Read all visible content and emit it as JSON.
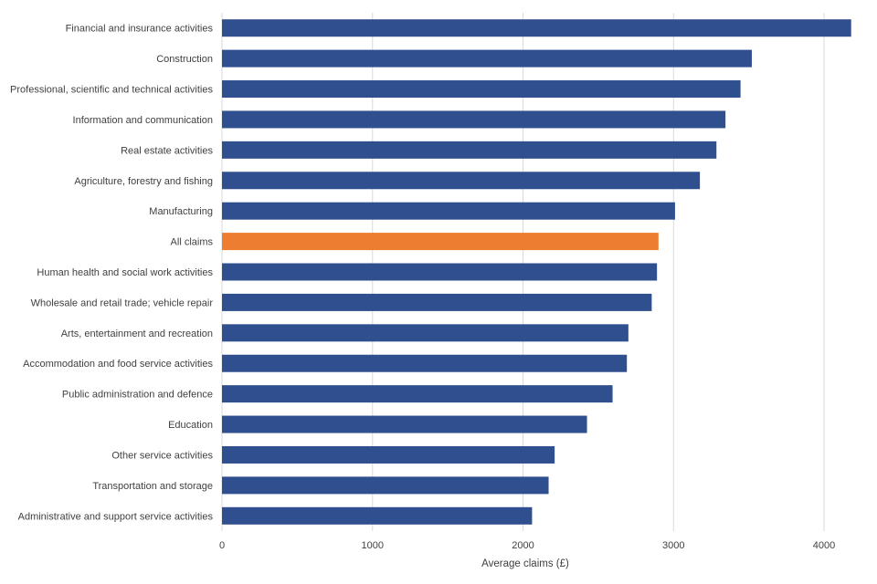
{
  "chart_data": {
    "type": "bar",
    "orientation": "horizontal",
    "title": "",
    "xlabel": "Average claims (£)",
    "ylabel": "",
    "xlim": [
      0,
      4200
    ],
    "xticks": [
      "0",
      "1000",
      "2000",
      "3000",
      "4000"
    ],
    "grid": true,
    "colors": {
      "default": "#2F4F8F",
      "highlight": "#ED7D31"
    },
    "categories": [
      "Financial and insurance activities",
      "Construction",
      "Professional, scientific and technical activities",
      "Information and communication",
      "Real estate activities",
      "Agriculture, forestry and fishing",
      "Manufacturing",
      "All claims",
      "Human health and social work activities",
      "Wholesale and retail trade; vehicle repair",
      "Arts, entertainment and recreation",
      "Accommodation and food service activities",
      "Public administration and defence",
      "Education",
      "Other service activities",
      "Transportation and storage",
      "Administrative and support service activities"
    ],
    "values": [
      4180,
      3520,
      3445,
      3345,
      3285,
      3175,
      3010,
      2900,
      2890,
      2855,
      2700,
      2690,
      2595,
      2425,
      2210,
      2170,
      2060
    ],
    "highlight": [
      "All claims"
    ]
  }
}
